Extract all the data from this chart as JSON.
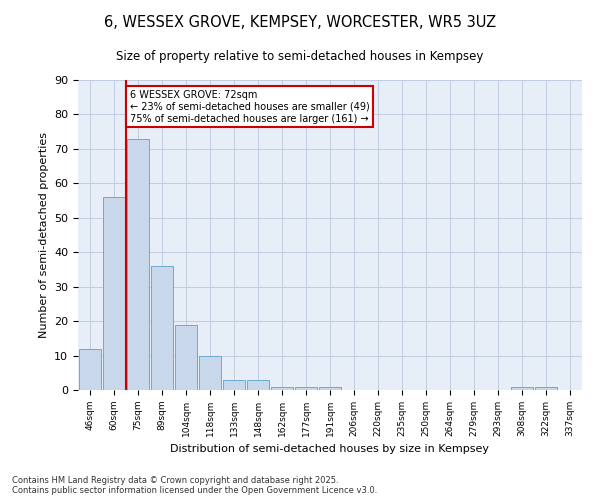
{
  "title": "6, WESSEX GROVE, KEMPSEY, WORCESTER, WR5 3UZ",
  "subtitle": "Size of property relative to semi-detached houses in Kempsey",
  "xlabel": "Distribution of semi-detached houses by size in Kempsey",
  "ylabel": "Number of semi-detached properties",
  "bin_labels": [
    "46sqm",
    "60sqm",
    "75sqm",
    "89sqm",
    "104sqm",
    "118sqm",
    "133sqm",
    "148sqm",
    "162sqm",
    "177sqm",
    "191sqm",
    "206sqm",
    "220sqm",
    "235sqm",
    "250sqm",
    "264sqm",
    "279sqm",
    "293sqm",
    "308sqm",
    "322sqm",
    "337sqm"
  ],
  "bar_values": [
    12,
    56,
    73,
    36,
    19,
    10,
    3,
    3,
    1,
    1,
    1,
    0,
    0,
    0,
    0,
    0,
    0,
    0,
    1,
    1,
    0
  ],
  "subject_label": "6 WESSEX GROVE: 72sqm",
  "pct_smaller": 23,
  "n_smaller": 49,
  "pct_larger": 75,
  "n_larger": 161,
  "bar_color": "#c8d8ea",
  "bar_edge_color": "#6aaad4",
  "vline_color": "#cc0000",
  "annotation_box_color": "#cc0000",
  "background_color": "#e8eef8",
  "grid_color": "#c0cce0",
  "ylim": [
    0,
    90
  ],
  "yticks": [
    0,
    10,
    20,
    30,
    40,
    50,
    60,
    70,
    80,
    90
  ],
  "vline_x_index": 1.5,
  "footer_line1": "Contains HM Land Registry data © Crown copyright and database right 2025.",
  "footer_line2": "Contains public sector information licensed under the Open Government Licence v3.0."
}
